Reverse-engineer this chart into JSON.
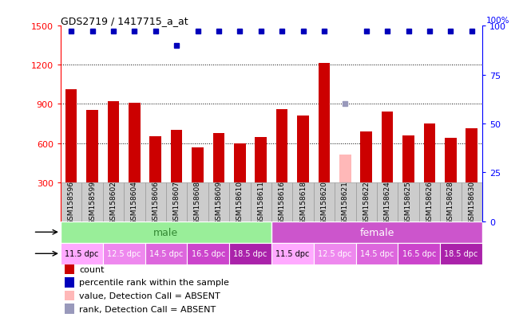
{
  "title": "GDS2719 / 1417715_a_at",
  "samples": [
    "GSM158596",
    "GSM158599",
    "GSM158602",
    "GSM158604",
    "GSM158606",
    "GSM158607",
    "GSM158608",
    "GSM158609",
    "GSM158610",
    "GSM158611",
    "GSM158616",
    "GSM158618",
    "GSM158620",
    "GSM158621",
    "GSM158622",
    "GSM158624",
    "GSM158625",
    "GSM158626",
    "GSM158628",
    "GSM158630"
  ],
  "counts": [
    1010,
    855,
    920,
    910,
    650,
    700,
    565,
    675,
    600,
    645,
    860,
    810,
    1215,
    510,
    690,
    840,
    660,
    750,
    640,
    715
  ],
  "absent_mask": [
    false,
    false,
    false,
    false,
    false,
    false,
    false,
    false,
    false,
    false,
    false,
    false,
    false,
    true,
    false,
    false,
    false,
    false,
    false,
    false
  ],
  "percentile_ranks": [
    97,
    97,
    97,
    97,
    97,
    90,
    97,
    97,
    97,
    97,
    97,
    97,
    97,
    60,
    97,
    97,
    97,
    97,
    97,
    97
  ],
  "absent_rank_mask": [
    false,
    false,
    false,
    false,
    false,
    false,
    false,
    false,
    false,
    false,
    false,
    false,
    false,
    true,
    false,
    false,
    false,
    false,
    false,
    false
  ],
  "ylim_left": [
    0,
    1500
  ],
  "ylim_right": [
    0,
    100
  ],
  "yticks_left": [
    300,
    600,
    900,
    1200,
    1500
  ],
  "yticks_right": [
    0,
    25,
    50,
    75,
    100
  ],
  "bar_color": "#cc0000",
  "absent_bar_color": "#ffb8b8",
  "dot_color": "#0000bb",
  "absent_dot_color": "#9999bb",
  "chart_bg": "#e8e8e8",
  "label_bg": "#cccccc",
  "dotted_lines": [
    600,
    900,
    1200
  ],
  "gender_male_color": "#99ee99",
  "gender_female_color": "#cc55cc",
  "gender_male_text_color": "#338833",
  "gender_female_text_color": "#ffffff",
  "time_colors": [
    "#ffaaff",
    "#ee88ee",
    "#dd66dd",
    "#cc44cc",
    "#aa22aa"
  ],
  "time_labels": [
    "11.5 dpc",
    "12.5 dpc",
    "14.5 dpc",
    "16.5 dpc",
    "18.5 dpc"
  ],
  "legend_items": [
    {
      "label": "count",
      "color": "#cc0000"
    },
    {
      "label": "percentile rank within the sample",
      "color": "#0000bb"
    },
    {
      "label": "value, Detection Call = ABSENT",
      "color": "#ffb8b8"
    },
    {
      "label": "rank, Detection Call = ABSENT",
      "color": "#9999bb"
    }
  ]
}
